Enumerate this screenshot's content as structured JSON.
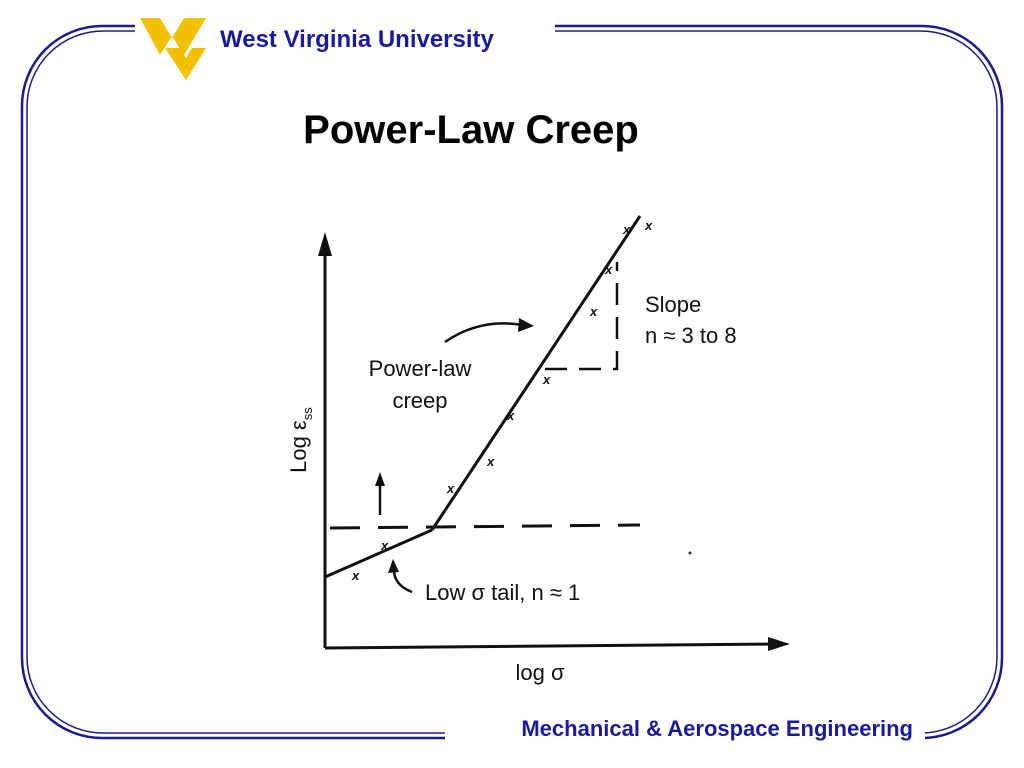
{
  "header": {
    "university": "West Virginia University"
  },
  "title": "Power-Law Creep",
  "figure": {
    "y_axis_label": "Log ε",
    "y_axis_subscript": "ss",
    "x_axis_label": "log σ",
    "regime_label_line1": "Power-law",
    "regime_label_line2": "creep",
    "slope_label": "Slope",
    "slope_value": "n ≈ 3 to 8",
    "tail_label": "Low σ tail, n ≈ 1",
    "point_marker": "x"
  },
  "footer": {
    "department": "Mechanical & Aerospace Engineering"
  }
}
